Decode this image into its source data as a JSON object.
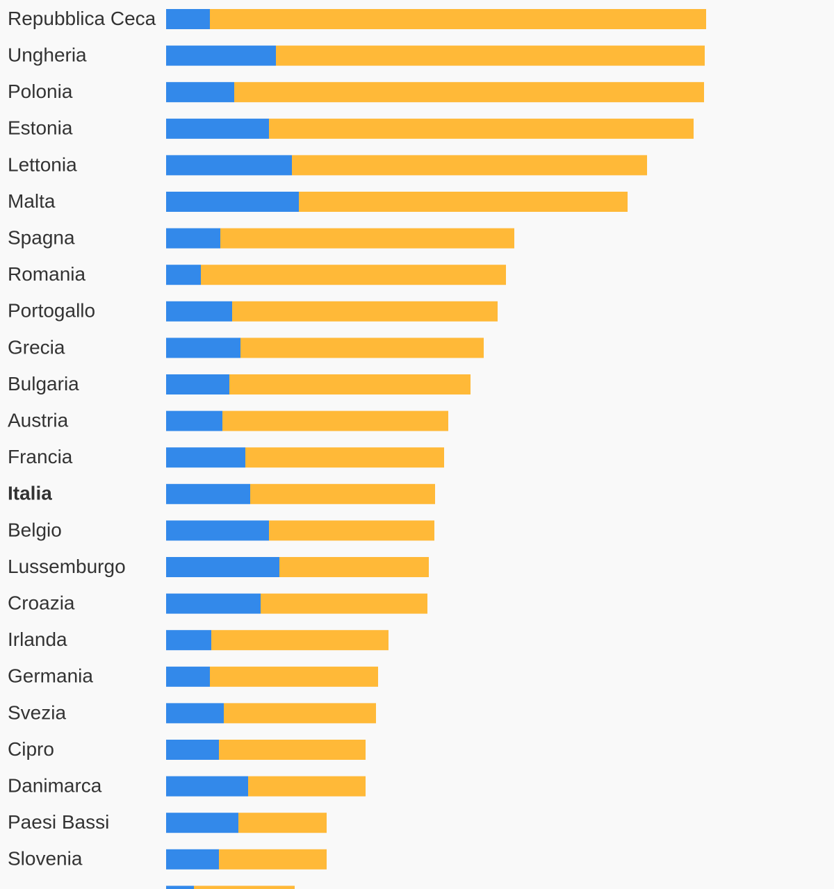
{
  "chart_data": {
    "type": "bar",
    "orientation": "horizontal",
    "stacked": true,
    "categories": [
      "Repubblica Ceca",
      "Ungheria",
      "Polonia",
      "Estonia",
      "Lettonia",
      "Malta",
      "Spagna",
      "Romania",
      "Portogallo",
      "Grecia",
      "Bulgaria",
      "Austria",
      "Francia",
      "Italia",
      "Belgio",
      "Lussemburgo",
      "Croazia",
      "Irlanda",
      "Germania",
      "Svezia",
      "Cipro",
      "Danimarca",
      "Paesi Bassi",
      "Slovenia",
      ""
    ],
    "highlight_category": "Italia",
    "series": [
      {
        "color": "#3389ea",
        "values": [
          63,
          158,
          98,
          148,
          181,
          191,
          78,
          50,
          95,
          107,
          91,
          81,
          114,
          121,
          148,
          163,
          136,
          65,
          63,
          83,
          76,
          118,
          104,
          76,
          40
        ]
      },
      {
        "color": "#ffb938",
        "values": [
          714,
          617,
          676,
          611,
          511,
          473,
          423,
          439,
          382,
          350,
          347,
          325,
          286,
          266,
          238,
          215,
          240,
          255,
          242,
          219,
          211,
          169,
          127,
          155,
          145
        ]
      }
    ],
    "xlim": [
      0,
      1000
    ],
    "grid": false,
    "legend": "none"
  }
}
